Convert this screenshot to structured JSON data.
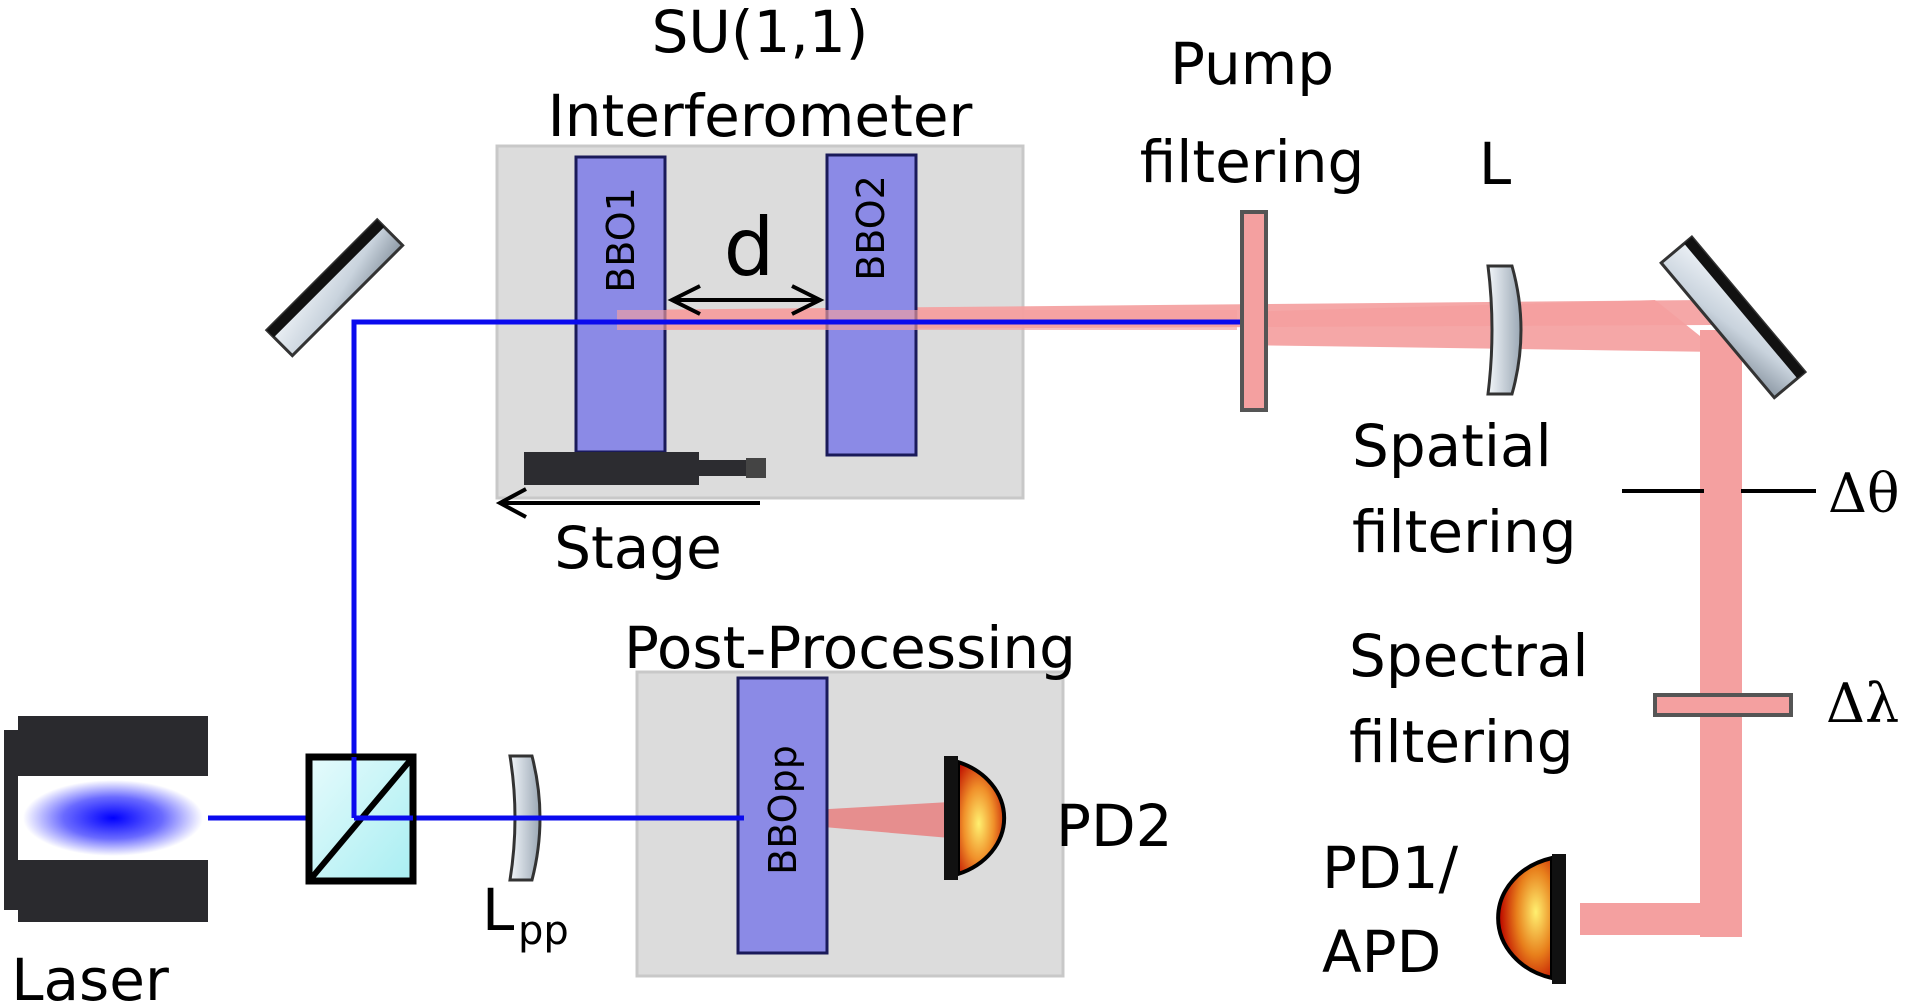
{
  "labels": {
    "su11_line1": "SU(1,1)",
    "su11_line2": "Interferometer",
    "pump_line1": "Pump",
    "pump_line2": "filtering",
    "lens_L": "L",
    "spatial_line1": "Spatial",
    "spatial_line2": "filtering",
    "spectral_line1": "Spectral",
    "spectral_line2": "filtering",
    "delta_theta": "Δθ",
    "delta_lambda": "Δλ",
    "stage": "Stage",
    "post_processing": "Post-Processing",
    "pd2": "PD2",
    "pd1_line1": "PD1/",
    "pd1_line2": "APD",
    "laser": "Laser",
    "lpp_main": "L",
    "lpp_sub": "pp",
    "bbo1": "BBO1",
    "bbo2": "BBO2",
    "bbopp": "BBOpp",
    "distance": "d"
  },
  "colors": {
    "pump_beam": "#0a0aee",
    "signal_beam": "#f4a0a0",
    "crystal_fill": "#8b8ae6",
    "crystal_stroke": "#1a1a5a",
    "box_fill": "#dcdcdc",
    "box_stroke": "#c8c8c8",
    "filter_fill": "#f4a0a0",
    "filter_stroke": "#555555",
    "laser_body": "#2a2a2e",
    "detector_outer": "#c41400",
    "detector_inner": "#ffe060"
  }
}
